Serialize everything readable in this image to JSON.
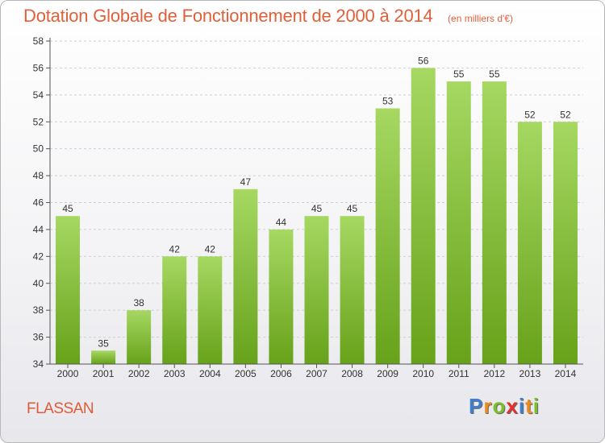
{
  "header": {
    "title": "Dotation Globale de Fonctionnement de 2000 à 2014",
    "subtitle": "(en milliers d'€)"
  },
  "footer": {
    "commune": "FLASSAN",
    "brand": {
      "letters": [
        "P",
        "r",
        "o",
        "x",
        "i",
        "t",
        "i"
      ],
      "colors": [
        "#3f7fcf",
        "#ef8a1c",
        "#7dbf2b",
        "#e6302c",
        "#3f7fcf",
        "#ef8a1c",
        "#7dbf2b"
      ]
    }
  },
  "chart_data": {
    "type": "bar",
    "categories": [
      "2000",
      "2001",
      "2002",
      "2003",
      "2004",
      "2005",
      "2006",
      "2007",
      "2008",
      "2009",
      "2010",
      "2011",
      "2012",
      "2013",
      "2014"
    ],
    "values": [
      45,
      35,
      38,
      42,
      42,
      47,
      44,
      45,
      45,
      53,
      56,
      55,
      55,
      52,
      52
    ],
    "data_labels": [
      "45",
      "35",
      "38",
      "42",
      "42",
      "47",
      "44",
      "45",
      "45",
      "53",
      "56",
      "55",
      "55",
      "52",
      "52"
    ],
    "ylim": [
      34,
      58
    ],
    "yticks": [
      34,
      36,
      38,
      40,
      42,
      44,
      46,
      48,
      50,
      52,
      54,
      56,
      58
    ],
    "ytick_labels": [
      "34",
      "36",
      "38",
      "40",
      "42",
      "44",
      "46",
      "48",
      "50",
      "52",
      "54",
      "56",
      "58"
    ],
    "grid": "horizontal dashed",
    "legend": "none",
    "colors": {
      "bar_light": "#9fd35a",
      "bar_dark": "#6aa51c",
      "axis": "#555555",
      "grid": "#cfcfcf",
      "text": "#333333"
    }
  }
}
